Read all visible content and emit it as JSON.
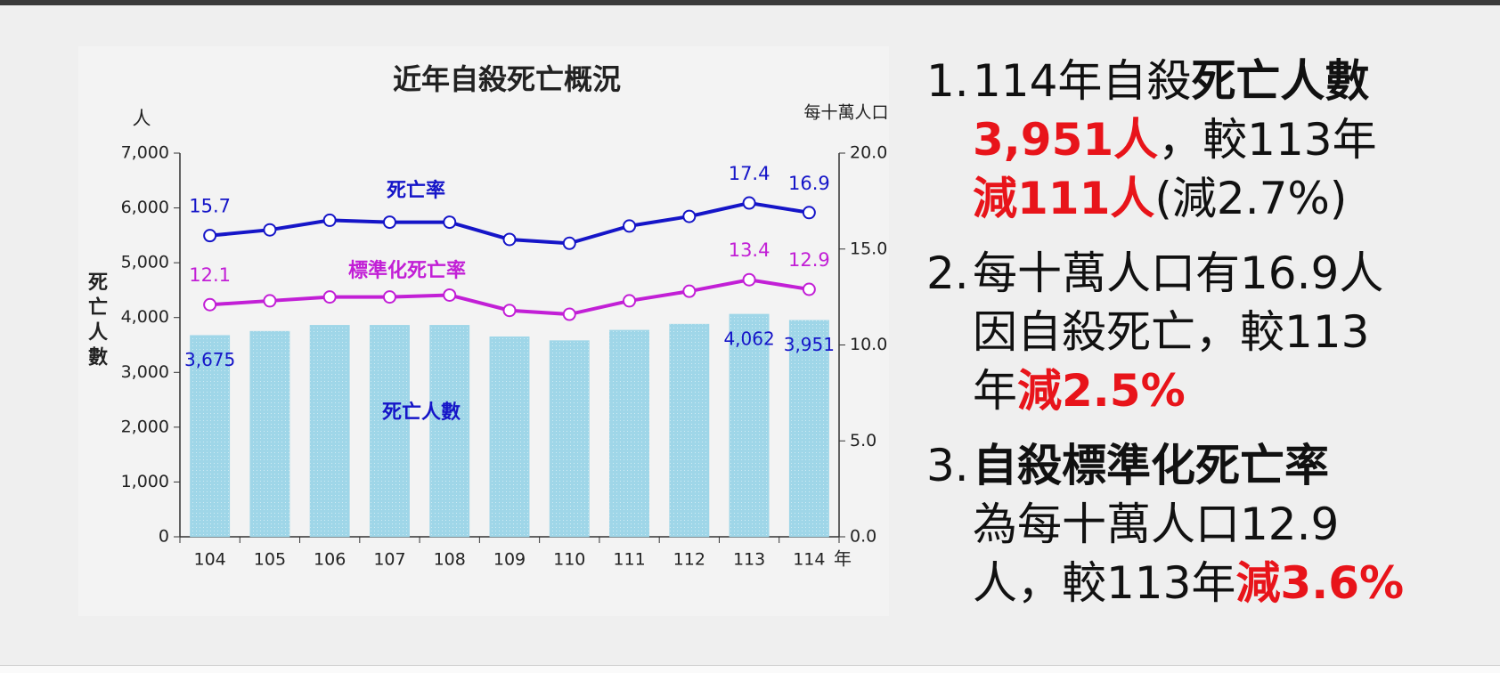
{
  "chart_data": {
    "type": "bar",
    "title": "近年自殺死亡概況",
    "categories": [
      "104",
      "105",
      "106",
      "107",
      "108",
      "109",
      "110",
      "111",
      "112",
      "113",
      "114"
    ],
    "x_unit": "年",
    "y_unit": "人",
    "ylabel": "死亡人數",
    "y2_unit": "每十萬人口",
    "series": [
      {
        "name": "死亡人數",
        "type": "bar",
        "axis": "y",
        "color": "#9fd6e8",
        "values": [
          3675,
          3750,
          3860,
          3860,
          3860,
          3650,
          3580,
          3770,
          3880,
          4062,
          3951
        ],
        "value_labels": [
          "3,675",
          null,
          null,
          null,
          null,
          null,
          null,
          null,
          null,
          "4,062",
          "3,951"
        ]
      },
      {
        "name": "死亡率",
        "type": "line",
        "axis": "y2",
        "color": "#1515c8",
        "values": [
          15.7,
          16.0,
          16.5,
          16.4,
          16.4,
          15.5,
          15.3,
          16.2,
          16.7,
          17.4,
          16.9
        ],
        "value_labels": [
          "15.7",
          null,
          null,
          null,
          null,
          null,
          null,
          null,
          null,
          "17.4",
          "16.9"
        ]
      },
      {
        "name": "標準化死亡率",
        "type": "line",
        "axis": "y2",
        "color": "#c21fd6",
        "values": [
          12.1,
          12.3,
          12.5,
          12.5,
          12.6,
          11.8,
          11.6,
          12.3,
          12.8,
          13.4,
          12.9
        ],
        "value_labels": [
          "12.1",
          null,
          null,
          null,
          null,
          null,
          null,
          null,
          null,
          "13.4",
          "12.9"
        ]
      }
    ],
    "ylim": [
      0,
      7000
    ],
    "yticks": [
      0,
      {
        "value": 1000,
        "label": "1,000"
      },
      {
        "value": 2000,
        "label": "2,000"
      },
      {
        "value": 3000,
        "label": "3,000"
      },
      {
        "value": 4000,
        "label": "4,000"
      },
      {
        "value": 5000,
        "label": "5,000"
      },
      {
        "value": 6000,
        "label": "6,000"
      },
      {
        "value": 7000,
        "label": "7,000"
      }
    ],
    "y2lim": [
      0,
      20
    ],
    "y2ticks": [
      {
        "value": 0,
        "label": "0.0"
      },
      {
        "value": 5,
        "label": "5.0"
      },
      {
        "value": 10,
        "label": "10.0"
      },
      {
        "value": 15,
        "label": "15.0"
      },
      {
        "value": 20,
        "label": "20.0"
      }
    ]
  },
  "points": [
    {
      "number": "1.",
      "lines": [
        [
          {
            "text": "114年自殺",
            "style": "regular"
          },
          {
            "text": "死亡人數",
            "style": "bold"
          }
        ],
        [
          {
            "text": "3,951人",
            "style": "highlight"
          },
          {
            "text": "，較113年",
            "style": "regular"
          }
        ],
        [
          {
            "text": "減111人",
            "style": "highlight"
          },
          {
            "text": "(減2.7%)",
            "style": "regular"
          }
        ]
      ]
    },
    {
      "number": "2.",
      "lines": [
        [
          {
            "text": "每十萬人口有16.9人",
            "style": "regular"
          }
        ],
        [
          {
            "text": "因自殺死亡，較113",
            "style": "regular"
          }
        ],
        [
          {
            "text": "年",
            "style": "regular"
          },
          {
            "text": "減2.5%",
            "style": "highlight"
          }
        ]
      ]
    },
    {
      "number": "3.",
      "lines": [
        [
          {
            "text": "自殺標準化死亡率",
            "style": "bold"
          }
        ],
        [
          {
            "text": "為每十萬人口12.9",
            "style": "regular"
          }
        ],
        [
          {
            "text": "人，較113年",
            "style": "regular"
          },
          {
            "text": "減3.6%",
            "style": "highlight"
          }
        ]
      ]
    }
  ]
}
